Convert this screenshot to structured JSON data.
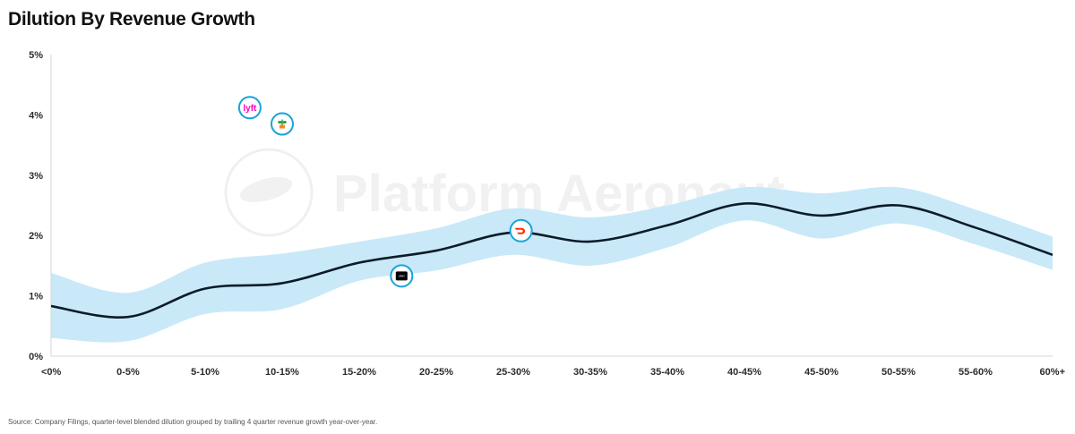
{
  "title": "Dilution By Revenue Growth",
  "source": "Source: Company Filings, quarter-level blended dilution grouped by trailing 4 quarter revenue growth year-over-year.",
  "watermark": "Platform Aeronaut",
  "colors": {
    "line": "#0d1b2a",
    "band": "#c9e9f8",
    "marker_ring": "#1aa3d9",
    "lyft": "#ff00bf",
    "doordash": "#ff3008"
  },
  "chart_data": {
    "type": "line",
    "title": "Dilution By Revenue Growth",
    "categories": [
      "<0%",
      "0-5%",
      "5-10%",
      "10-15%",
      "15-20%",
      "20-25%",
      "25-30%",
      "30-35%",
      "35-40%",
      "40-45%",
      "45-50%",
      "50-55%",
      "55-60%",
      "60%+"
    ],
    "yticks": [
      "0%",
      "1%",
      "2%",
      "3%",
      "4%",
      "5%"
    ],
    "ylim": [
      0,
      5
    ],
    "grid": false,
    "series": [
      {
        "values": [
          0.83,
          0.65,
          1.12,
          1.21,
          1.55,
          1.75,
          2.05,
          1.9,
          2.17,
          2.53,
          2.33,
          2.5,
          2.13,
          1.68
        ]
      }
    ],
    "band": {
      "upper": [
        1.38,
        1.05,
        1.55,
        1.7,
        1.9,
        2.12,
        2.45,
        2.3,
        2.5,
        2.8,
        2.7,
        2.8,
        2.43,
        1.98
      ],
      "lower": [
        0.3,
        0.25,
        0.7,
        0.78,
        1.25,
        1.42,
        1.68,
        1.5,
        1.8,
        2.25,
        1.95,
        2.2,
        1.85,
        1.43
      ]
    },
    "markers": [
      {
        "icon": "lyft-logo-icon",
        "logo_text": "lyft",
        "x": 2.58,
        "y": 4.12
      },
      {
        "icon": "plant-logo-icon",
        "x": 3.0,
        "y": 3.85
      },
      {
        "icon": "doordash-logo-icon",
        "x": 6.1,
        "y": 2.08
      },
      {
        "icon": "square-logo-icon",
        "logo_text": "uber",
        "x": 4.55,
        "y": 1.33
      }
    ]
  }
}
